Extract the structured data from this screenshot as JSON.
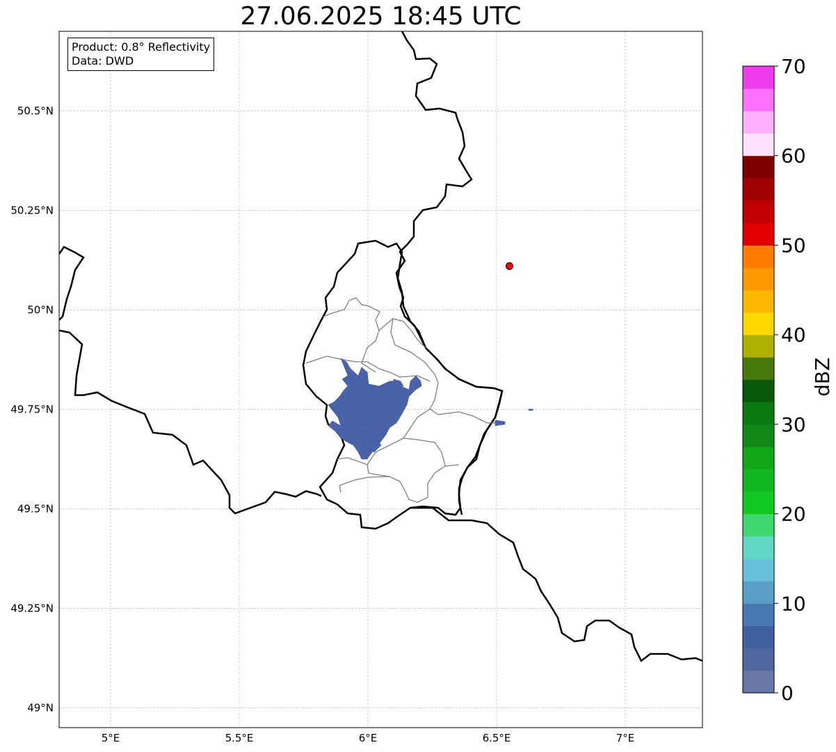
{
  "title": "27.06.2025 18:45 UTC",
  "info": {
    "product": "Product: 0.8° Reflectivity",
    "data": "Data: DWD"
  },
  "map": {
    "lon_range": [
      4.8,
      7.3
    ],
    "lat_range": [
      48.95,
      50.7
    ],
    "x_ticks": [
      {
        "value": 5.0,
        "label": "5°E"
      },
      {
        "value": 5.5,
        "label": "5.5°E"
      },
      {
        "value": 6.0,
        "label": "6°E"
      },
      {
        "value": 6.5,
        "label": "6.5°E"
      },
      {
        "value": 7.0,
        "label": "7°E"
      }
    ],
    "y_ticks": [
      {
        "value": 50.5,
        "label": "50.5°N"
      },
      {
        "value": 50.25,
        "label": "50.25°N"
      },
      {
        "value": 50.0,
        "label": "50°N"
      },
      {
        "value": 49.75,
        "label": "49.75°N"
      },
      {
        "value": 49.5,
        "label": "49.5°N"
      },
      {
        "value": 49.25,
        "label": "49.25°N"
      },
      {
        "value": 49.0,
        "label": "49°N"
      }
    ],
    "gridlines": true,
    "radar_site": {
      "lon": 6.55,
      "lat": 50.11,
      "color": "#ff0000"
    },
    "echo_color": "#4a63a8"
  },
  "colorbar": {
    "label": "dBZ",
    "min": 0,
    "max": 70,
    "ticks": [
      {
        "value": 0,
        "label": "0"
      },
      {
        "value": 10,
        "label": "10"
      },
      {
        "value": 20,
        "label": "20"
      },
      {
        "value": 30,
        "label": "30"
      },
      {
        "value": 40,
        "label": "40"
      },
      {
        "value": 50,
        "label": "50"
      },
      {
        "value": 60,
        "label": "60"
      },
      {
        "value": 70,
        "label": "70"
      }
    ],
    "colors": [
      "#6a75a8",
      "#5168a0",
      "#4260a0",
      "#4a78b0",
      "#5a9ec8",
      "#68c0dc",
      "#60d8c4",
      "#40d870",
      "#10c820",
      "#10b820",
      "#10a818",
      "#108818",
      "#0a7810",
      "#085a08",
      "#487808",
      "#b0b000",
      "#ffd800",
      "#ffb800",
      "#ff9800",
      "#ff7c00",
      "#e00000",
      "#c00000",
      "#a00000",
      "#7c0000",
      "#ffe0ff",
      "#ffb0ff",
      "#ff70ff",
      "#ee3cee"
    ]
  }
}
